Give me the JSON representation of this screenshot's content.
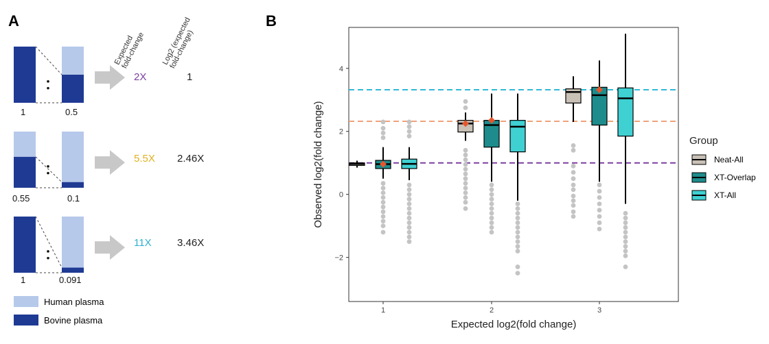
{
  "panelA": {
    "letter": "A",
    "header_expected": [
      "Expected",
      "fold-change"
    ],
    "header_log2": [
      "Log2 (expected",
      "fold-change)"
    ],
    "rows": [
      {
        "fold": "2X",
        "log2": "1",
        "left_label": "1",
        "right_label": "0.5",
        "color": "#7b3fa0",
        "left_bovine_fraction": 1.0,
        "right_bovine_fraction": 0.5
      },
      {
        "fold": "5.5X",
        "log2": "2.46X",
        "left_label": "0.55",
        "right_label": "0.1",
        "color": "#e0b020",
        "left_bovine_fraction": 0.55,
        "right_bovine_fraction": 0.1
      },
      {
        "fold": "11X",
        "log2": "3.46X",
        "left_label": "1",
        "right_label": "0.091",
        "color": "#30b0d0",
        "left_bovine_fraction": 1.0,
        "right_bovine_fraction": 0.091
      }
    ],
    "legend": [
      {
        "label": "Human plasma",
        "color": "#b6c9ea"
      },
      {
        "label": "Bovine plasma",
        "color": "#1f3a93"
      }
    ],
    "colors": {
      "human": "#b6c9ea",
      "bovine": "#1f3a93",
      "arrow": "#c8c8c8"
    }
  },
  "panelB": {
    "letter": "B",
    "legend_title": "Group",
    "legend": [
      {
        "label": "Neat-All",
        "color": "#c9c0b6"
      },
      {
        "label": "XT-Overlap",
        "color": "#1e8c8c"
      },
      {
        "label": "XT-All",
        "color": "#3fd0d2"
      }
    ]
  },
  "chart_data": {
    "type": "box",
    "xlabel": "Expected log2(fold change)",
    "ylabel": "Observed log2(fold change)",
    "x_ticks": [
      "1",
      "2",
      "3"
    ],
    "y_ticks": [
      -2,
      0,
      2,
      4
    ],
    "ylim": [
      -3.4,
      5.3
    ],
    "reference_lines": [
      {
        "y": 1.0,
        "color": "#7b3fa0"
      },
      {
        "y": 2.32,
        "color": "#f0a27a"
      },
      {
        "y": 3.32,
        "color": "#2fb8d8"
      }
    ],
    "mean_marker_color": "#e4572e",
    "groups": [
      {
        "x": "1",
        "boxes": [
          {
            "series": "Neat-All",
            "whisker_low": 0.85,
            "q1": 0.92,
            "median": 0.97,
            "q3": 1.0,
            "whisker_high": 1.07,
            "mean": null,
            "outliers": []
          },
          {
            "series": "XT-Overlap",
            "whisker_low": 0.5,
            "q1": 0.82,
            "median": 0.96,
            "q3": 1.08,
            "whisker_high": 1.5,
            "mean": 0.96,
            "outliers": [
              2.3,
              2.1,
              1.95,
              1.8,
              0.35,
              0.2,
              0.05,
              -0.1,
              -0.25,
              -0.4,
              -0.55,
              -0.7,
              -0.85,
              -1.0,
              -1.2
            ]
          },
          {
            "series": "XT-All",
            "whisker_low": 0.45,
            "q1": 0.82,
            "median": 0.97,
            "q3": 1.12,
            "whisker_high": 1.5,
            "mean": null,
            "outliers": [
              2.3,
              2.15,
              2.0,
              1.85,
              0.3,
              0.15,
              0.0,
              -0.15,
              -0.3,
              -0.45,
              -0.6,
              -0.75,
              -0.9,
              -1.05,
              -1.2,
              -1.35,
              -1.5
            ]
          }
        ]
      },
      {
        "x": "2",
        "boxes": [
          {
            "series": "Neat-All",
            "whisker_low": 1.7,
            "q1": 1.98,
            "median": 2.25,
            "q3": 2.35,
            "whisker_high": 2.6,
            "mean": 2.25,
            "outliers": [
              2.95,
              2.75,
              1.4,
              1.25,
              1.1,
              0.95,
              0.8,
              0.65,
              0.5,
              0.35,
              0.2,
              0.05,
              -0.1,
              -0.25,
              -0.45
            ]
          },
          {
            "series": "XT-Overlap",
            "whisker_low": 0.4,
            "q1": 1.5,
            "median": 2.2,
            "q3": 2.35,
            "whisker_high": 3.2,
            "mean": 2.35,
            "outliers": [
              0.3,
              0.15,
              0.0,
              -0.15,
              -0.3,
              -0.45,
              -0.6,
              -0.75,
              -0.9,
              -1.05,
              -1.2
            ]
          },
          {
            "series": "XT-All",
            "whisker_low": -0.2,
            "q1": 1.35,
            "median": 2.15,
            "q3": 2.35,
            "whisker_high": 3.2,
            "mean": null,
            "outliers": [
              -0.3,
              -0.45,
              -0.6,
              -0.75,
              -0.9,
              -1.05,
              -1.2,
              -1.35,
              -1.5,
              -1.65,
              -1.8,
              -2.3,
              -2.5
            ]
          }
        ]
      },
      {
        "x": "3",
        "boxes": [
          {
            "series": "Neat-All",
            "whisker_low": 2.3,
            "q1": 2.9,
            "median": 3.25,
            "q3": 3.35,
            "whisker_high": 3.75,
            "mean": null,
            "outliers": [
              1.55,
              1.4,
              0.9,
              0.7,
              0.5,
              0.3,
              0.15,
              -0.05,
              -0.2,
              -0.35,
              -0.55,
              -0.7
            ]
          },
          {
            "series": "XT-Overlap",
            "whisker_low": 0.4,
            "q1": 2.2,
            "median": 3.15,
            "q3": 3.4,
            "whisker_high": 4.25,
            "mean": 3.32,
            "outliers": [
              0.3,
              0.1,
              -0.1,
              -0.3,
              -0.5,
              -0.7,
              -0.9,
              -1.1
            ]
          },
          {
            "series": "XT-All",
            "whisker_low": -0.3,
            "q1": 1.85,
            "median": 3.05,
            "q3": 3.38,
            "whisker_high": 5.1,
            "mean": null,
            "outliers": [
              -0.6,
              -0.75,
              -0.9,
              -1.05,
              -1.2,
              -1.35,
              -1.5,
              -1.65,
              -1.8,
              -1.95,
              -2.3
            ]
          }
        ]
      }
    ]
  }
}
